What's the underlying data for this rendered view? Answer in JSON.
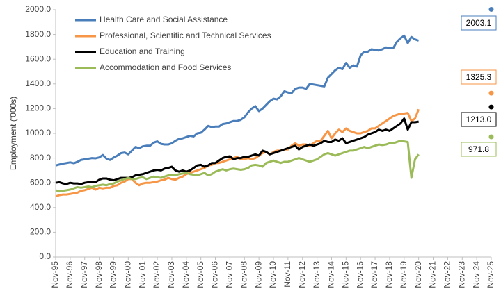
{
  "chart_data": {
    "type": "line",
    "y_label": "Employment ('000s)",
    "categories": [
      "Nov-95",
      null,
      null,
      null,
      "Nov-96",
      null,
      null,
      null,
      "Nov-97",
      null,
      null,
      null,
      "Nov-98",
      null,
      null,
      null,
      "Nov-99",
      null,
      null,
      null,
      "Nov-00",
      null,
      null,
      null,
      "Nov-01",
      null,
      null,
      null,
      "Nov-02",
      null,
      null,
      null,
      "Nov-03",
      null,
      null,
      null,
      "Nov-04",
      null,
      null,
      null,
      "Nov-05",
      null,
      null,
      null,
      "Nov-06",
      null,
      null,
      null,
      "Nov-07",
      null,
      null,
      null,
      "Nov-08",
      null,
      null,
      null,
      "Nov-09",
      null,
      null,
      null,
      "Nov-10",
      null,
      null,
      null,
      "Nov-11",
      null,
      null,
      null,
      "Nov-12",
      null,
      null,
      null,
      "Nov-13",
      null,
      null,
      null,
      "Nov-14",
      null,
      null,
      null,
      "Nov-15",
      null,
      null,
      null,
      "Nov-16",
      null,
      null,
      null,
      "Nov-17",
      null,
      null,
      null,
      "Nov-18",
      null,
      null,
      null,
      "Nov-19",
      null,
      null,
      null,
      "Nov-20",
      null,
      null,
      null,
      "Nov-21",
      null,
      null,
      null,
      "Nov-22",
      null,
      null,
      null,
      "Nov-23",
      null,
      null,
      null,
      "Nov-24",
      null,
      null,
      null,
      "Nov-25"
    ],
    "ylim": [
      0,
      2000
    ],
    "yticks": [
      {
        "value": 0,
        "label": "0.0"
      },
      {
        "value": 200,
        "label": "200.0"
      },
      {
        "value": 400,
        "label": "400.0"
      },
      {
        "value": 600,
        "label": "600.0"
      },
      {
        "value": 800,
        "label": "800.0"
      },
      {
        "value": 1000,
        "label": "1000.0"
      },
      {
        "value": 1200,
        "label": "1200.0"
      },
      {
        "value": 1400,
        "label": "1400.0"
      },
      {
        "value": 1600,
        "label": "1600.0"
      },
      {
        "value": 1800,
        "label": "1800.0"
      },
      {
        "value": 2000,
        "label": "2000.0"
      }
    ],
    "legend": "top-left",
    "series": [
      {
        "name": "Health Care and Social Assistance",
        "color": "#4a7ebb",
        "projection": 2003.1,
        "values": [
          740,
          748,
          755,
          760,
          765,
          758,
          770,
          785,
          790,
          795,
          800,
          798,
          805,
          825,
          795,
          785,
          805,
          820,
          840,
          845,
          830,
          860,
          890,
          880,
          895,
          900,
          900,
          925,
          935,
          915,
          910,
          910,
          920,
          940,
          955,
          960,
          970,
          980,
          975,
          1000,
          1005,
          1030,
          1060,
          1050,
          1055,
          1055,
          1075,
          1080,
          1090,
          1100,
          1100,
          1110,
          1130,
          1170,
          1200,
          1220,
          1180,
          1200,
          1230,
          1260,
          1280,
          1275,
          1300,
          1340,
          1330,
          1325,
          1360,
          1370,
          1370,
          1360,
          1400,
          1395,
          1390,
          1385,
          1380,
          1450,
          1480,
          1510,
          1530,
          1520,
          1570,
          1530,
          1550,
          1540,
          1630,
          1660,
          1660,
          1680,
          1675,
          1670,
          1680,
          1695,
          1690,
          1690,
          1740,
          1770,
          1790,
          1730,
          1780,
          1760,
          1750,
          null,
          null,
          null,
          null,
          null,
          null,
          null,
          null,
          null,
          null,
          null,
          null,
          null,
          null,
          null,
          null,
          null,
          null,
          null,
          null
        ]
      },
      {
        "name": "Professional, Scientific and Technical Services",
        "color": "#f79646",
        "projection": 1325.3,
        "values": [
          490,
          500,
          505,
          505,
          510,
          515,
          520,
          535,
          540,
          550,
          560,
          545,
          560,
          555,
          560,
          560,
          575,
          580,
          600,
          610,
          630,
          630,
          600,
          580,
          595,
          600,
          600,
          605,
          610,
          620,
          625,
          640,
          630,
          625,
          640,
          650,
          670,
          680,
          690,
          700,
          710,
          720,
          740,
          745,
          760,
          760,
          770,
          780,
          790,
          800,
          810,
          790,
          790,
          800,
          790,
          800,
          820,
          840,
          850,
          830,
          850,
          860,
          860,
          870,
          870,
          900,
          920,
          900,
          910,
          910,
          900,
          920,
          940,
          940,
          980,
          1020,
          960,
          1000,
          1030,
          1010,
          1040,
          1020,
          1010,
          1000,
          1000,
          1010,
          1020,
          1040,
          1040,
          1060,
          1080,
          1100,
          1120,
          1140,
          1150,
          1160,
          1160,
          1165,
          1100,
          1120,
          1195,
          null,
          null,
          null,
          null,
          null,
          null,
          null,
          null,
          null,
          null,
          null,
          null,
          null,
          null,
          null,
          null,
          null,
          null,
          null,
          null
        ]
      },
      {
        "name": "Education and Training",
        "color": "#000000",
        "projection": 1213,
        "projection_label": "1213.0",
        "values": [
          600,
          605,
          595,
          590,
          600,
          595,
          595,
          590,
          600,
          605,
          610,
          605,
          625,
          635,
          635,
          625,
          620,
          630,
          640,
          640,
          640,
          645,
          660,
          665,
          670,
          680,
          690,
          700,
          705,
          700,
          715,
          720,
          730,
          700,
          690,
          700,
          690,
          700,
          720,
          740,
          745,
          730,
          740,
          760,
          760,
          780,
          800,
          810,
          815,
          790,
          800,
          800,
          810,
          810,
          820,
          830,
          820,
          860,
          850,
          830,
          840,
          850,
          860,
          870,
          880,
          890,
          900,
          870,
          890,
          900,
          910,
          900,
          910,
          920,
          940,
          930,
          930,
          950,
          940,
          960,
          920,
          930,
          940,
          950,
          960,
          970,
          990,
          1000,
          1010,
          1030,
          1020,
          1030,
          1020,
          1040,
          1060,
          1080,
          1120,
          1030,
          1090,
          1090,
          1095,
          null,
          null,
          null,
          null,
          null,
          null,
          null,
          null,
          null,
          null,
          null,
          null,
          null,
          null,
          null,
          null,
          null,
          null,
          null,
          null
        ]
      },
      {
        "name": "Accommodation and Food Services",
        "color": "#9bbb59",
        "projection": 971.8,
        "values": [
          540,
          530,
          535,
          540,
          545,
          555,
          565,
          560,
          565,
          570,
          565,
          575,
          580,
          585,
          580,
          590,
          595,
          610,
          620,
          630,
          640,
          630,
          630,
          640,
          645,
          630,
          640,
          650,
          645,
          640,
          650,
          660,
          665,
          660,
          670,
          675,
          680,
          670,
          665,
          660,
          670,
          680,
          660,
          670,
          690,
          700,
          710,
          700,
          710,
          715,
          710,
          705,
          710,
          720,
          740,
          745,
          740,
          730,
          760,
          770,
          780,
          770,
          760,
          770,
          770,
          780,
          790,
          800,
          790,
          780,
          770,
          780,
          790,
          810,
          830,
          840,
          830,
          820,
          830,
          840,
          850,
          860,
          860,
          870,
          880,
          890,
          880,
          890,
          900,
          910,
          905,
          910,
          920,
          920,
          930,
          940,
          935,
          930,
          640,
          790,
          830,
          null,
          null,
          null,
          null,
          null,
          null,
          null,
          null,
          null,
          null,
          null,
          null,
          null,
          null,
          null,
          null,
          null,
          null,
          null,
          null
        ]
      }
    ]
  }
}
